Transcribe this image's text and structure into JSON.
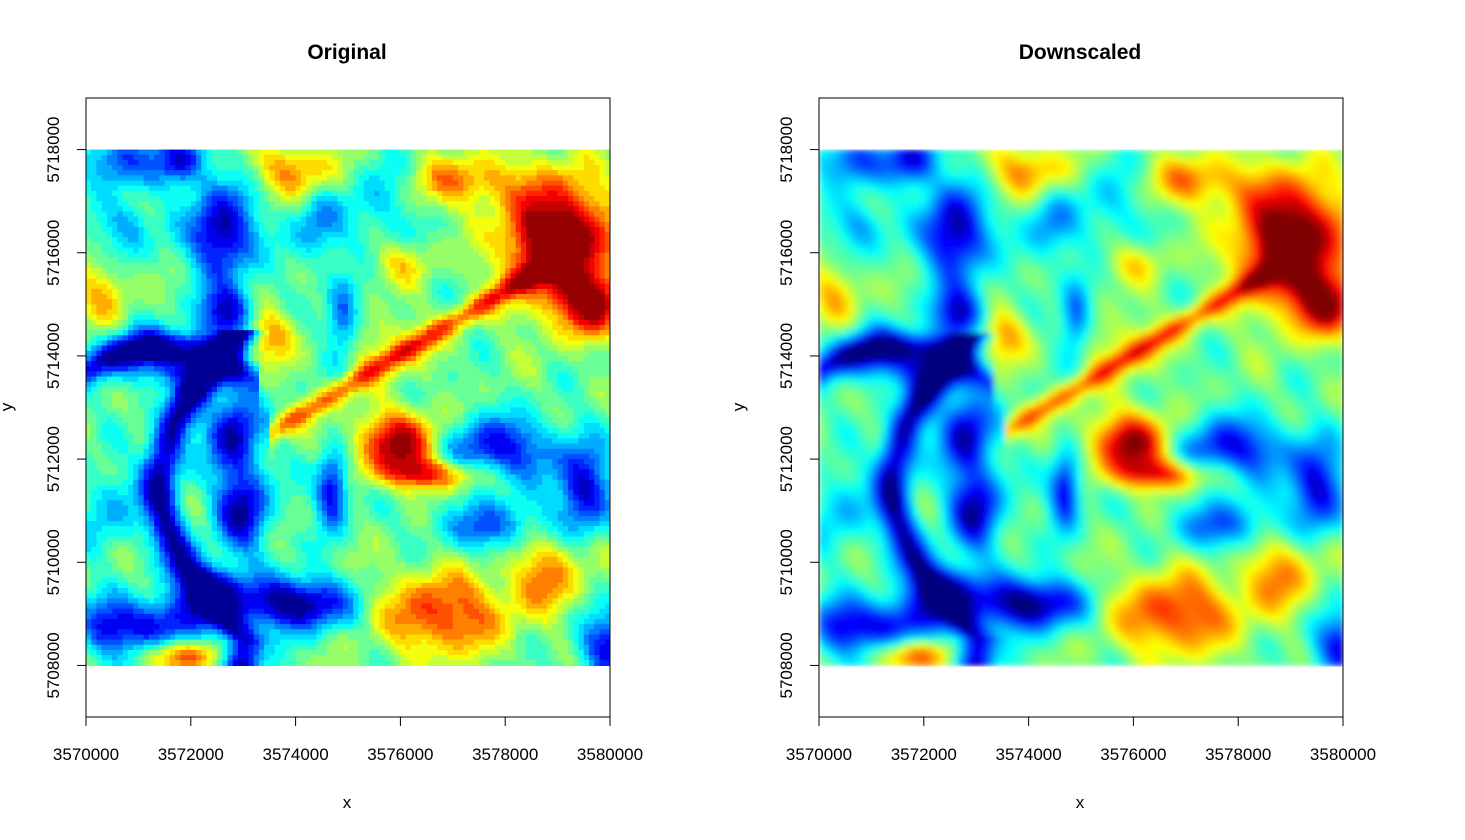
{
  "chart_data": [
    {
      "type": "heatmap",
      "title": "Original",
      "xlabel": "x",
      "ylabel": "y",
      "xlim": [
        3570000,
        3580000
      ],
      "ylim": [
        5707000,
        5719000
      ],
      "extent": {
        "x": [
          3570000,
          3580000
        ],
        "y": [
          5708000,
          5718000
        ]
      },
      "x_ticks": [
        3570000,
        3572000,
        3574000,
        3576000,
        3578000,
        3580000
      ],
      "x_tick_labels": [
        "3570000",
        "3572000",
        "3574000",
        "3576000",
        "3578000",
        "3580000"
      ],
      "y_ticks": [
        5708000,
        5710000,
        5712000,
        5714000,
        5716000,
        5718000
      ],
      "y_tick_labels": [
        "5708000",
        "5710000",
        "5712000",
        "5714000",
        "5716000",
        "5718000"
      ],
      "palette": [
        "#00007f",
        "#0000ff",
        "#007fff",
        "#00ffff",
        "#7fff7f",
        "#ffff00",
        "#ff7f00",
        "#ff0000",
        "#7f0000"
      ],
      "resolution": "coarse"
    },
    {
      "type": "heatmap",
      "title": "Downscaled",
      "xlabel": "x",
      "ylabel": "y",
      "xlim": [
        3570000,
        3580000
      ],
      "ylim": [
        5707000,
        5719000
      ],
      "extent": {
        "x": [
          3570000,
          3580000
        ],
        "y": [
          5708000,
          5718000
        ]
      },
      "x_ticks": [
        3570000,
        3572000,
        3574000,
        3576000,
        3578000,
        3580000
      ],
      "x_tick_labels": [
        "3570000",
        "3572000",
        "3574000",
        "3576000",
        "3578000",
        "3580000"
      ],
      "y_ticks": [
        5708000,
        5710000,
        5712000,
        5714000,
        5716000,
        5718000
      ],
      "y_tick_labels": [
        "5708000",
        "5710000",
        "5712000",
        "5714000",
        "5716000",
        "5718000"
      ],
      "palette": [
        "#00007f",
        "#0000ff",
        "#007fff",
        "#00ffff",
        "#7fff7f",
        "#ffff00",
        "#ff7f00",
        "#ff0000",
        "#7f0000"
      ],
      "resolution": "fine"
    }
  ]
}
